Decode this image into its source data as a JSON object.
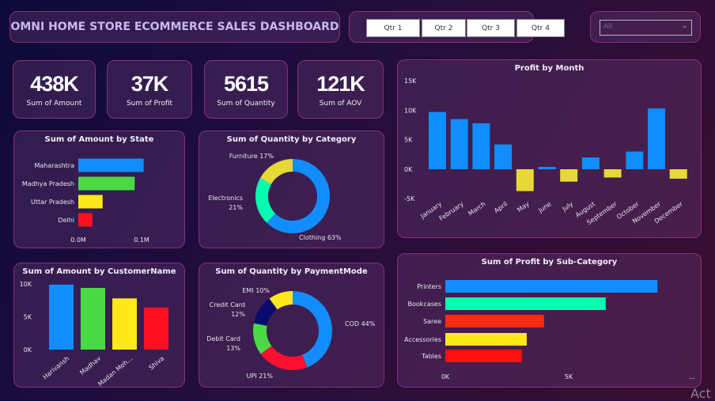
{
  "header": {
    "title": "OMNI HOME STORE ECOMMERCE SALES DASHBOARD"
  },
  "quarter_slicer": {
    "buttons": [
      "Qtr 1",
      "Qtr 2",
      "Qtr 3",
      "Qtr 4"
    ]
  },
  "dropdown": {
    "value": "All",
    "icon": "chevron-down-icon"
  },
  "kpis": [
    {
      "value": "438K",
      "label": "Sum of Amount"
    },
    {
      "value": "37K",
      "label": "Sum of Profit"
    },
    {
      "value": "5615",
      "label": "Sum of Quantity"
    },
    {
      "value": "121K",
      "label": "Sum of AOV"
    }
  ],
  "watermark": "Act",
  "chart_data": [
    {
      "id": "profit_month",
      "type": "bar",
      "title": "Profit by Month",
      "categories": [
        "January",
        "February",
        "March",
        "April",
        "May",
        "June",
        "July",
        "August",
        "September",
        "October",
        "November",
        "December"
      ],
      "values": [
        9700,
        8500,
        7800,
        4200,
        -3700,
        400,
        -2100,
        2000,
        -1400,
        3000,
        10300,
        -1600
      ],
      "yticks": [
        "15K",
        "10K",
        "5K",
        "0K",
        "-5K"
      ],
      "ylim": [
        -5000,
        15000
      ],
      "colors": {
        "positive": "#118DFF",
        "negative": "#E6D935"
      }
    },
    {
      "id": "amount_state",
      "type": "bar",
      "orientation": "horizontal",
      "title": "Sum of Amount by State",
      "categories": [
        "Maharashtra",
        "Madhya Pradesh",
        "Uttar Pradesh",
        "Delhi"
      ],
      "values": [
        102000,
        88000,
        38000,
        22000
      ],
      "xticks": [
        "0.0M",
        "0.1M"
      ],
      "colors": [
        "#118DFF",
        "#4AD944",
        "#FFE81A",
        "#FF1020"
      ]
    },
    {
      "id": "qty_category",
      "type": "pie",
      "donut": true,
      "title": "Sum of Quantity by Category",
      "categories": [
        "Clothing",
        "Electronics",
        "Furniture"
      ],
      "values": [
        63,
        21,
        17
      ],
      "labels": [
        "Clothing 63%",
        "Electronics 21%",
        "Furniture 17%"
      ],
      "colors": [
        "#118DFF",
        "#00FFB0",
        "#E6D935"
      ]
    },
    {
      "id": "amount_customer",
      "type": "bar",
      "title": "Sum of Amount by CustomerName",
      "categories": [
        "Harivansh",
        "Madhav",
        "Madan Moh...",
        "Shiva"
      ],
      "values": [
        9900,
        9400,
        7800,
        6400
      ],
      "yticks": [
        "10K",
        "5K",
        "0K"
      ],
      "ylim": [
        0,
        10000
      ],
      "colors": [
        "#118DFF",
        "#4AD944",
        "#FFE81A",
        "#FF1020"
      ]
    },
    {
      "id": "qty_payment",
      "type": "pie",
      "donut": true,
      "title": "Sum of Quantity by PaymentMode",
      "categories": [
        "COD",
        "UPI",
        "Debit Card",
        "Credit Card",
        "EMI"
      ],
      "values": [
        44,
        21,
        13,
        12,
        10
      ],
      "labels": [
        "COD 44%",
        "UPI 21%",
        "Debit Card 13%",
        "Credit Card 12%",
        "EMI 10%"
      ],
      "colors": [
        "#118DFF",
        "#FF1030",
        "#4AD944",
        "#0A0A6E",
        "#FFE81A"
      ]
    },
    {
      "id": "profit_subcat",
      "type": "bar",
      "orientation": "horizontal",
      "title": "Sum of Profit by Sub-Category",
      "categories": [
        "Printers",
        "Bookcases",
        "Saree",
        "Accessories",
        "Tables"
      ],
      "values": [
        8600,
        6500,
        4000,
        3300,
        3100
      ],
      "xticks": [
        "0K",
        "5K",
        "..."
      ],
      "colors": [
        "#118DFF",
        "#00FFB0",
        "#FF2A10",
        "#FFE81A",
        "#FF1010"
      ]
    }
  ]
}
